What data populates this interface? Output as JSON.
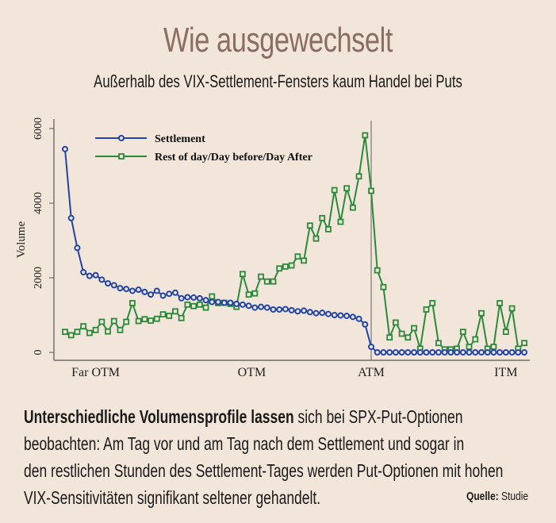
{
  "header": {
    "title": "Wie ausgewechselt",
    "subtitle": "Außerhalb des VIX-Settlement-Fensters kaum Handel bei Puts"
  },
  "caption": {
    "bold_lead": "Unterschiedliche Volumensprofile lassen",
    "lines": [
      " sich bei SPX-Put-Optionen",
      "beobachten: Am Tag vor und am Tag nach dem Settlement und sogar in",
      "den restlichen Stunden des Settlement-Tages werden Put-Optionen mit hohen",
      "VIX-Sensitivitäten signifikant seltener gehandelt."
    ],
    "source_label": "Quelle:",
    "source_value": "Studie"
  },
  "chart_data": {
    "type": "line",
    "title": "",
    "xlabel": "",
    "ylabel": "Volume",
    "ylim": [
      0,
      6000
    ],
    "yticks": [
      0,
      2000,
      4000,
      6000
    ],
    "x_tick_labels": [
      {
        "label": "Far OTM",
        "index": 5
      },
      {
        "label": "OTM",
        "index": 30.5
      },
      {
        "label": "ATM",
        "index": 50
      },
      {
        "label": "ITM",
        "index": 72
      }
    ],
    "reference_line": {
      "label": "ATM",
      "index": 50
    },
    "grid": false,
    "legend": "top-left",
    "series": [
      {
        "name": "Settlement",
        "color": "#2244aa",
        "marker": "circle",
        "values": [
          5450,
          3600,
          2800,
          2150,
          2050,
          2070,
          1950,
          1850,
          1800,
          1720,
          1700,
          1650,
          1680,
          1620,
          1550,
          1650,
          1520,
          1570,
          1600,
          1450,
          1480,
          1470,
          1450,
          1400,
          1350,
          1350,
          1330,
          1330,
          1300,
          1280,
          1250,
          1200,
          1220,
          1200,
          1150,
          1150,
          1160,
          1130,
          1100,
          1120,
          1080,
          1050,
          1060,
          1030,
          1000,
          990,
          980,
          950,
          900,
          750,
          150,
          0,
          0,
          0,
          0,
          0,
          0,
          0,
          0,
          0,
          0,
          0,
          0,
          0,
          0,
          0,
          0,
          0,
          0,
          0,
          0,
          0,
          0,
          0,
          0,
          0
        ]
      },
      {
        "name": "Rest of day/Day before/Day After",
        "color": "#2a8a3a",
        "marker": "square",
        "values": [
          550,
          460,
          550,
          700,
          520,
          600,
          820,
          560,
          840,
          600,
          820,
          1320,
          840,
          890,
          850,
          900,
          1020,
          980,
          1100,
          920,
          1280,
          1240,
          1280,
          1200,
          1500,
          1320,
          1330,
          1300,
          1220,
          2100,
          1550,
          1580,
          2030,
          1900,
          1900,
          2250,
          2300,
          2330,
          2570,
          2460,
          3400,
          3050,
          3600,
          3300,
          4350,
          3500,
          4400,
          3880,
          4720,
          5820,
          4330,
          2200,
          1750,
          400,
          800,
          500,
          400,
          650,
          100,
          1150,
          1320,
          250,
          80,
          80,
          100,
          550,
          150,
          350,
          1050,
          100,
          150,
          1320,
          550,
          1180,
          100,
          250
        ]
      }
    ]
  }
}
